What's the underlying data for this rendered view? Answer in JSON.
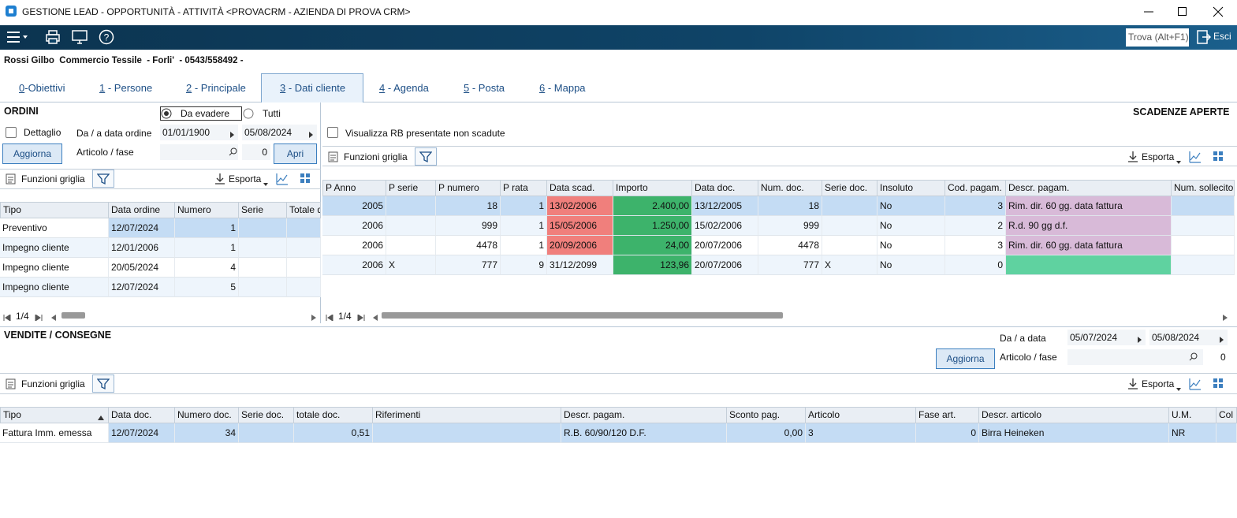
{
  "window": {
    "title": "GESTIONE LEAD - OPPORTUNITÀ - ATTIVITÀ <PROVACRM - AZIENDA DI PROVA CRM>"
  },
  "toolbar": {
    "search": "Trova (Alt+F1)",
    "exit": "Esci"
  },
  "header": {
    "customer": "Rossi Gilbo  Commercio Tessile  - Forli'  - 0543/558492 -"
  },
  "tabs": [
    {
      "key": "0",
      "label": "-Obiettivi"
    },
    {
      "key": "1",
      "label": " - Persone"
    },
    {
      "key": "2",
      "label": " - Principale"
    },
    {
      "key": "3",
      "label": " - Dati cliente"
    },
    {
      "key": "4",
      "label": " - Agenda"
    },
    {
      "key": "5",
      "label": " - Posta"
    },
    {
      "key": "6",
      "label": " - Mappa"
    }
  ],
  "ordini": {
    "title": "ORDINI",
    "radio_open": "Da evadere",
    "radio_all": "Tutti",
    "detail": "Dettaglio",
    "date_label": "Da / a data ordine",
    "date_from": "01/01/1900",
    "date_to": "05/08/2024",
    "refresh": "Aggiorna",
    "item_label": "Articolo / fase",
    "phase": "0",
    "open": "Apri",
    "grid_functions": "Funzioni griglia",
    "export": "Esporta",
    "columns": [
      "Tipo",
      "Data ordine",
      "Numero",
      "Serie",
      "Totale d"
    ],
    "rows": [
      [
        "Preventivo",
        "12/07/2024",
        "1",
        null,
        null
      ],
      [
        "Impegno cliente",
        "12/01/2006",
        "1",
        null,
        null
      ],
      [
        "Impegno cliente",
        "20/05/2024",
        "4",
        null,
        null
      ],
      [
        "Impegno cliente",
        "12/07/2024",
        "5",
        null,
        null
      ]
    ],
    "pager": "1/4"
  },
  "scadenze": {
    "title": "SCADENZE APERTE",
    "show_rb": "Visualizza RB presentate non scadute",
    "grid_functions": "Funzioni griglia",
    "export": "Esporta",
    "columns": [
      "P Anno",
      "P serie",
      "P numero",
      "P rata",
      "Data scad.",
      "Importo",
      "Data doc.",
      "Num. doc.",
      "Serie doc.",
      "Insoluto",
      "Cod. pagam.",
      "Descr. pagam.",
      "Num. sollecito"
    ],
    "rows": [
      [
        "2005",
        null,
        "18",
        "1",
        "13/02/2006",
        "2.400,00",
        "13/12/2005",
        "18",
        null,
        "No",
        "3",
        "Rim. dir. 60 gg. data fattura",
        null
      ],
      [
        "2006",
        null,
        "999",
        "1",
        "15/05/2006",
        "1.250,00",
        "15/02/2006",
        "999",
        null,
        "No",
        "2",
        "R.d. 90 gg d.f.",
        null
      ],
      [
        "2006",
        null,
        "4478",
        "1",
        "20/09/2006",
        "24,00",
        "20/07/2006",
        "4478",
        null,
        "No",
        "3",
        "Rim. dir. 60 gg. data fattura",
        null
      ],
      [
        "2006",
        "X",
        "777",
        "9",
        "31/12/2099",
        "123,96",
        "20/07/2006",
        "777",
        "X",
        "No",
        "0",
        null,
        null
      ]
    ],
    "pager": "1/4"
  },
  "vendite": {
    "title": "VENDITE / CONSEGNE",
    "date_label": "Da / a data",
    "date_from": "05/07/2024",
    "date_to": "05/08/2024",
    "refresh": "Aggiorna",
    "item_label": "Articolo / fase",
    "phase": "0",
    "grid_functions": "Funzioni griglia",
    "export": "Esporta",
    "columns": [
      "Tipo",
      "Data doc.",
      "Numero doc.",
      "Serie doc.",
      "totale doc.",
      "Riferimenti",
      "Descr. pagam.",
      "Sconto pag.",
      "Articolo",
      "Fase art.",
      "Descr. articolo",
      "U.M.",
      "Col"
    ],
    "rows": [
      [
        "Fattura Imm. emessa",
        "12/07/2024",
        "34",
        null,
        "0,51",
        null,
        "R.B. 60/90/120 D.F.",
        "0,00",
        "3",
        "0",
        "Birra Heineken",
        "NR",
        null
      ]
    ]
  }
}
